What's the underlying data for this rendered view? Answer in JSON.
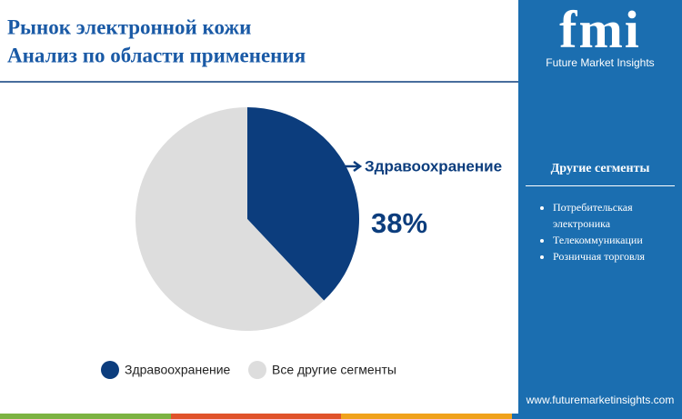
{
  "chart_data": {
    "type": "pie",
    "title": "Рынок электронной кожи",
    "subtitle": "Анализ по области применения",
    "categories": [
      "Здравоохранение",
      "Все другие сегменты"
    ],
    "values": [
      38,
      62
    ],
    "value_labels": [
      "38%",
      null
    ],
    "colors": [
      "#0c3d7d",
      "#dddddd"
    ],
    "legend": "bottom"
  },
  "panel": {
    "logo": "fmi",
    "brand": "Future Market Insights",
    "heading": "Другие сегменты",
    "items": [
      "Потребительская электроника",
      "Телекоммуникации",
      "Розничная торговля"
    ],
    "url": "www.futuremarketinsights.com"
  }
}
